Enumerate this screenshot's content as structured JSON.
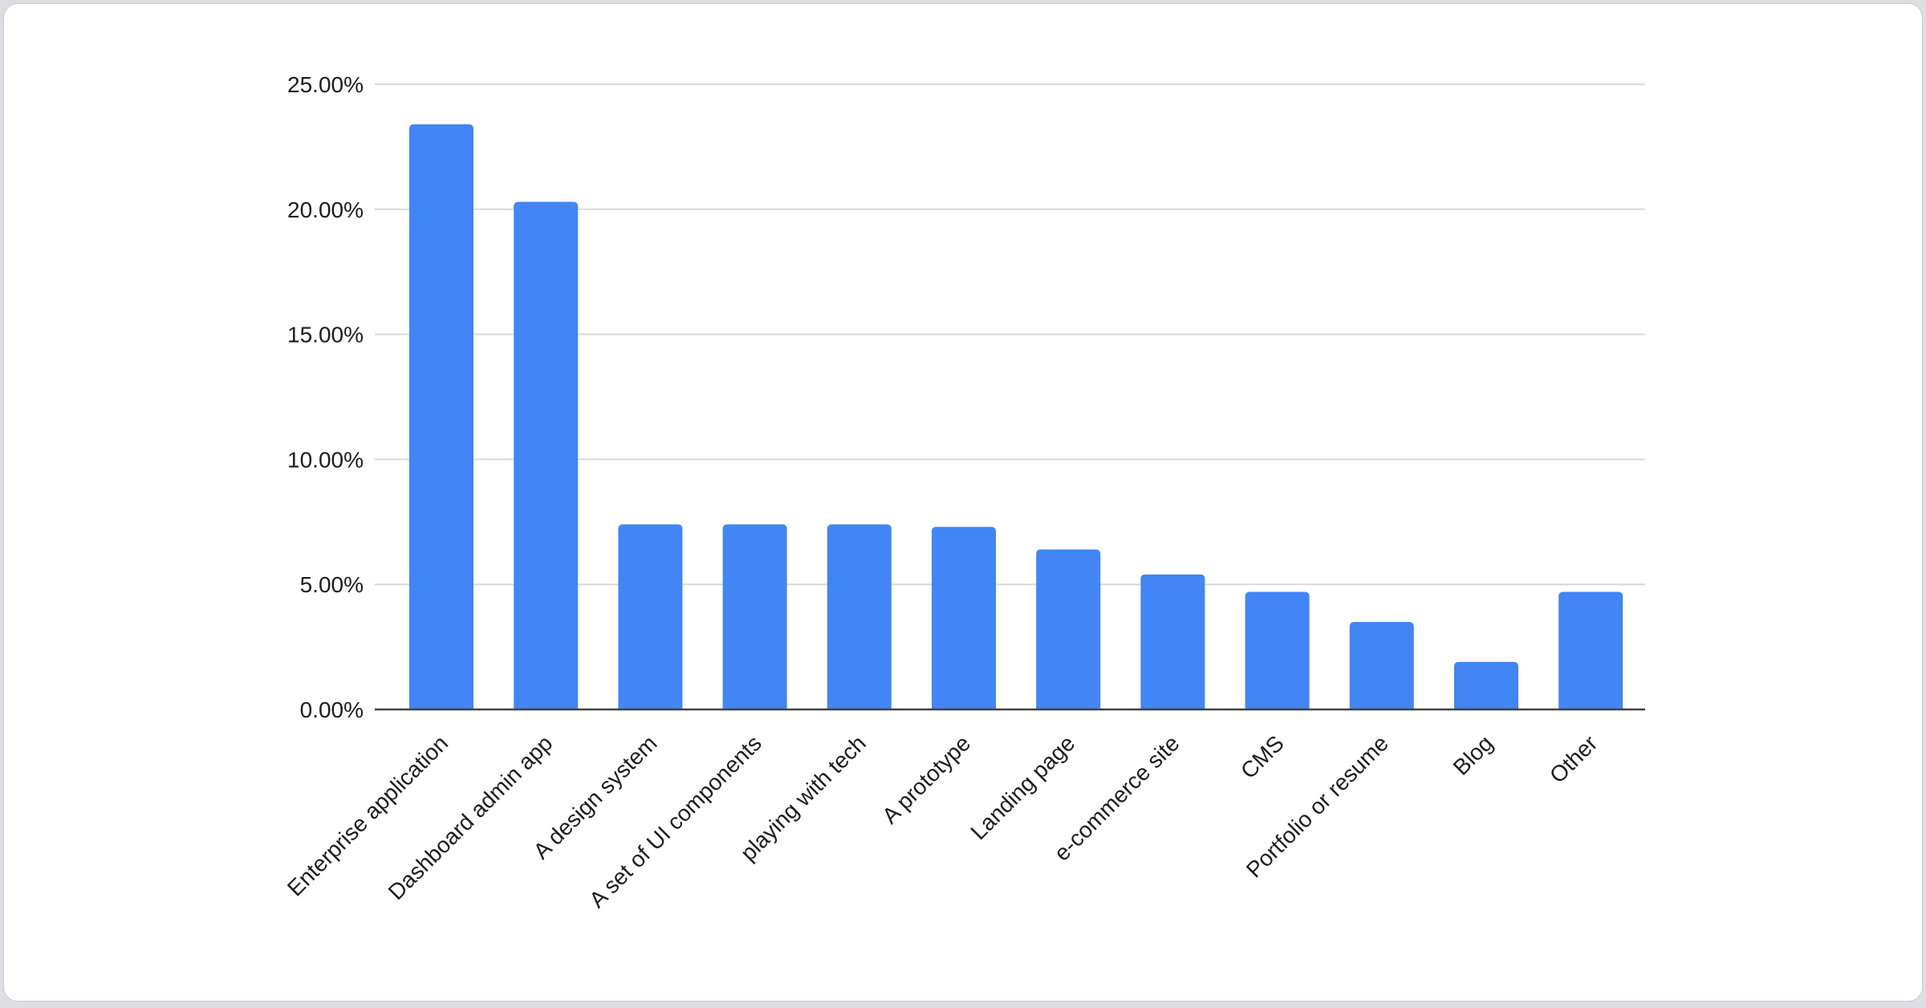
{
  "page": {
    "background": "#dcdee2",
    "card_background": "#ffffff",
    "card_border": "#c9cbd0"
  },
  "chart_data": {
    "type": "bar",
    "title": "",
    "xlabel": "",
    "ylabel": "",
    "categories": [
      "Enterprise application",
      "Dashboard admin app",
      "A design system",
      "A set of UI components",
      "playing with tech",
      "A prototype",
      "Landing page",
      "e-commerce site",
      "CMS",
      "Portfolio or resume",
      "Blog",
      "Other"
    ],
    "values": [
      23.4,
      20.3,
      7.4,
      7.4,
      7.4,
      7.3,
      6.4,
      5.4,
      4.7,
      3.5,
      1.9,
      4.7
    ],
    "value_unit": "%",
    "y_axis": {
      "min": 0,
      "max": 25,
      "step": 5,
      "tick_labels": [
        "0.00%",
        "5.00%",
        "10.00%",
        "15.00%",
        "20.00%",
        "25.00%"
      ]
    },
    "x_label_rotation_deg": 45,
    "grid": true,
    "legend": "none",
    "bar_color": "#4285f4",
    "gridline_color": "#d9d9d9",
    "axis_line_color": "#424242",
    "label_color": "#1c1c1c"
  }
}
